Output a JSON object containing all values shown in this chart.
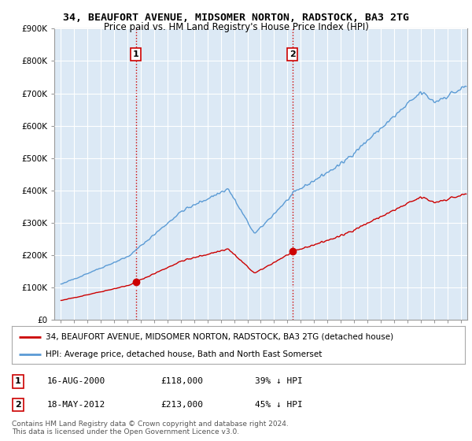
{
  "title": "34, BEAUFORT AVENUE, MIDSOMER NORTON, RADSTOCK, BA3 2TG",
  "subtitle": "Price paid vs. HM Land Registry's House Price Index (HPI)",
  "ylabel_ticks": [
    "£0",
    "£100K",
    "£200K",
    "£300K",
    "£400K",
    "£500K",
    "£600K",
    "£700K",
    "£800K",
    "£900K"
  ],
  "ytick_vals": [
    0,
    100000,
    200000,
    300000,
    400000,
    500000,
    600000,
    700000,
    800000,
    900000
  ],
  "ylim": [
    0,
    900000
  ],
  "xlim_start": 1994.5,
  "xlim_end": 2025.5,
  "hpi_color": "#5b9bd5",
  "hpi_fill_color": "#dce9f5",
  "price_color": "#cc0000",
  "purchase1_x": 2000.617,
  "purchase1_y": 118000,
  "purchase1_label": "1",
  "purchase2_x": 2012.38,
  "purchase2_y": 213000,
  "purchase2_label": "2",
  "vline_color": "#cc0000",
  "vline_style": ":",
  "legend_line1": "34, BEAUFORT AVENUE, MIDSOMER NORTON, RADSTOCK, BA3 2TG (detached house)",
  "legend_line2": "HPI: Average price, detached house, Bath and North East Somerset",
  "annotation1_date": "16-AUG-2000",
  "annotation1_price": "£118,000",
  "annotation1_pct": "39% ↓ HPI",
  "annotation2_date": "18-MAY-2012",
  "annotation2_price": "£213,000",
  "annotation2_pct": "45% ↓ HPI",
  "footnote": "Contains HM Land Registry data © Crown copyright and database right 2024.\nThis data is licensed under the Open Government Licence v3.0.",
  "bg_color": "#ffffff",
  "plot_bg_color": "#dce9f5",
  "grid_color": "#ffffff",
  "label_box_color": "#cc0000"
}
